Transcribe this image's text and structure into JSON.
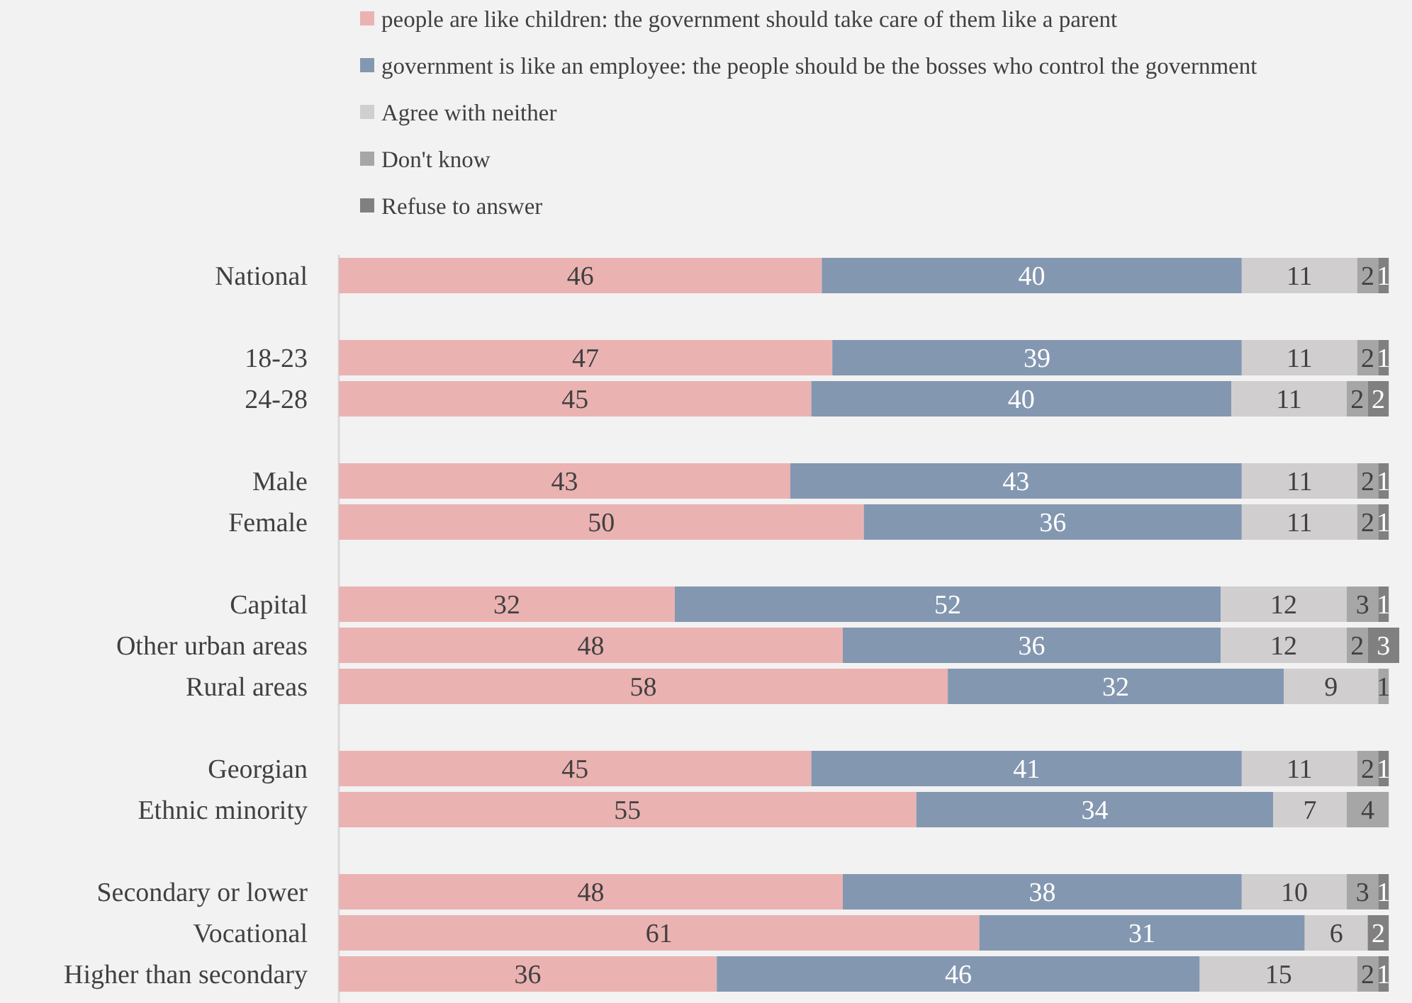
{
  "chart_data": {
    "type": "bar",
    "orientation": "horizontal",
    "stacked": true,
    "data_labels": true,
    "legend": "top",
    "xlim": [
      0,
      101
    ],
    "categories": [
      "National",
      null,
      "18-23",
      "24-28",
      null,
      "Male",
      "Female",
      null,
      "Capital",
      "Other urban areas",
      "Rural areas",
      null,
      "Georgian",
      "Ethnic minority",
      null,
      "Secondary or lower",
      "Vocational",
      "Higher than secondary"
    ],
    "series": [
      {
        "name": "people are like children: the government should take care of them like a parent",
        "color": "#ebb2b2",
        "values": [
          46,
          null,
          47,
          45,
          null,
          43,
          50,
          null,
          32,
          48,
          58,
          null,
          45,
          55,
          null,
          48,
          61,
          36
        ]
      },
      {
        "name": "government is like an employee: the people should be the bosses who control the government",
        "color": "#8497b0",
        "values": [
          40,
          null,
          39,
          40,
          null,
          43,
          36,
          null,
          52,
          36,
          32,
          null,
          41,
          34,
          null,
          38,
          31,
          46
        ]
      },
      {
        "name": "Agree with neither",
        "color": "#d0cece",
        "values": [
          11,
          null,
          11,
          11,
          null,
          11,
          11,
          null,
          12,
          12,
          9,
          null,
          11,
          7,
          null,
          10,
          6,
          15
        ]
      },
      {
        "name": "Don't know",
        "color": "#a6a6a6",
        "values": [
          2,
          null,
          2,
          2,
          null,
          2,
          2,
          null,
          3,
          2,
          1,
          null,
          2,
          4,
          null,
          3,
          null,
          2
        ]
      },
      {
        "name": "Refuse to answer",
        "color": "#808080",
        "values": [
          1,
          null,
          1,
          2,
          null,
          1,
          1,
          null,
          1,
          3,
          null,
          null,
          1,
          null,
          null,
          1,
          2,
          1
        ]
      }
    ]
  }
}
